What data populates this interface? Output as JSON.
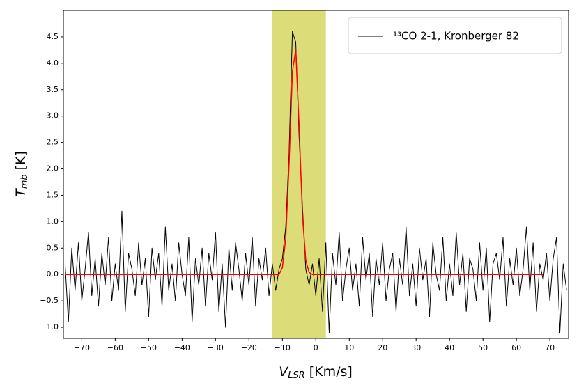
{
  "chart_data": {
    "type": "line",
    "xlabel": {
      "main": "V",
      "sub": "LSR",
      "unit": "[Km/s]"
    },
    "ylabel": {
      "main": "T",
      "sub": "mb",
      "unit": "[K]"
    },
    "xlim": [
      -75.5,
      75.6
    ],
    "ylim": [
      -1.21,
      5.0
    ],
    "xticks": [
      {
        "value": -70,
        "label": "−70"
      },
      {
        "value": -60,
        "label": "−60"
      },
      {
        "value": -50,
        "label": "−50"
      },
      {
        "value": -40,
        "label": "−40"
      },
      {
        "value": -30,
        "label": "−30"
      },
      {
        "value": -20,
        "label": "−20"
      },
      {
        "value": -10,
        "label": "−10"
      },
      0,
      10,
      20,
      30,
      40,
      50,
      60,
      70
    ],
    "yticks": [
      {
        "value": -1,
        "label": "−1.0"
      },
      {
        "value": -0.5,
        "label": "−0.5"
      },
      {
        "value": 0,
        "label": "0.0"
      },
      {
        "value": 0.5,
        "label": "0.5"
      },
      {
        "value": 1,
        "label": "1.0"
      },
      {
        "value": 1.5,
        "label": "1.5"
      },
      {
        "value": 2,
        "label": "2.0"
      },
      {
        "value": 2.5,
        "label": "2.5"
      },
      {
        "value": 3,
        "label": "3.0"
      },
      {
        "value": 3.5,
        "label": "3.5"
      },
      {
        "value": 4,
        "label": "4.0"
      },
      {
        "value": 4.5,
        "label": "4.5"
      }
    ],
    "span": {
      "xmin": -13,
      "xmax": 3,
      "color": "#dcdc78"
    },
    "legend": "upper right",
    "x": [
      -75,
      -74,
      -73,
      -72,
      -71,
      -70,
      -69,
      -68,
      -67,
      -66,
      -65,
      -64,
      -63,
      -62,
      -61,
      -60,
      -59,
      -58,
      -57,
      -56,
      -55,
      -54,
      -53,
      -52,
      -51,
      -50,
      -49,
      -48,
      -47,
      -46,
      -45,
      -44,
      -43,
      -42,
      -41,
      -40,
      -39,
      -38,
      -37,
      -36,
      -35,
      -34,
      -33,
      -32,
      -31,
      -30,
      -29,
      -28,
      -27,
      -26,
      -25,
      -24,
      -23,
      -22,
      -21,
      -20,
      -19,
      -18,
      -17,
      -16,
      -15,
      -14,
      -13,
      -12,
      -11,
      -10,
      -9,
      -8,
      -7,
      -6,
      -5,
      -4,
      -3,
      -2,
      -1,
      0,
      1,
      2,
      3,
      4,
      5,
      6,
      7,
      8,
      9,
      10,
      11,
      12,
      13,
      14,
      15,
      16,
      17,
      18,
      19,
      20,
      21,
      22,
      23,
      24,
      25,
      26,
      27,
      28,
      29,
      30,
      31,
      32,
      33,
      34,
      35,
      36,
      37,
      38,
      39,
      40,
      41,
      42,
      43,
      44,
      45,
      46,
      47,
      48,
      49,
      50,
      51,
      52,
      53,
      54,
      55,
      56,
      57,
      58,
      59,
      60,
      61,
      62,
      63,
      64,
      65,
      66,
      67,
      68,
      69,
      70,
      71,
      72,
      73,
      74,
      75
    ],
    "series": [
      {
        "name": "¹³CO 2-1, Kronberger 82",
        "color": "#000000",
        "values": [
          0.2,
          -0.9,
          0.5,
          -0.3,
          0.6,
          -0.5,
          0.1,
          0.8,
          -0.4,
          0.3,
          -0.6,
          0.4,
          -0.2,
          0.7,
          -0.5,
          0.2,
          -0.3,
          1.2,
          -0.7,
          0.4,
          0.1,
          -0.4,
          0.6,
          -0.2,
          0.3,
          -0.8,
          0.5,
          -0.1,
          0.4,
          -0.6,
          0.9,
          -0.3,
          0.2,
          -0.5,
          0.6,
          0.0,
          -0.4,
          0.7,
          -0.9,
          0.3,
          -0.2,
          0.5,
          -0.6,
          0.4,
          -0.1,
          0.8,
          -0.7,
          0.2,
          -1.0,
          0.5,
          -0.3,
          0.6,
          0.1,
          -0.5,
          0.4,
          -0.2,
          0.7,
          -0.6,
          0.3,
          -0.1,
          0.5,
          -0.4,
          0.2,
          -0.3,
          0.1,
          0.3,
          0.9,
          2.3,
          4.6,
          4.4,
          2.6,
          1.3,
          0.1,
          -0.2,
          0.2,
          -0.4,
          0.3,
          -0.7,
          0.6,
          -1.1,
          0.4,
          -0.2,
          0.8,
          -0.5,
          0.1,
          0.5,
          -0.3,
          0.2,
          -0.6,
          0.7,
          -0.1,
          0.4,
          -0.8,
          0.3,
          -0.2,
          0.6,
          -0.5,
          0.1,
          0.4,
          -0.7,
          0.3,
          -0.2,
          0.9,
          -0.4,
          0.2,
          -0.6,
          0.5,
          -0.1,
          0.3,
          -0.8,
          0.6,
          0.0,
          -0.3,
          0.7,
          -0.5,
          0.2,
          -0.4,
          0.8,
          -0.2,
          0.4,
          -0.7,
          0.3,
          0.1,
          -0.5,
          0.6,
          -0.3,
          0.5,
          -0.9,
          0.2,
          0.4,
          -0.1,
          0.7,
          -0.6,
          0.3,
          -0.2,
          0.5,
          -0.4,
          0.1,
          0.9,
          -0.3,
          0.6,
          -0.7,
          0.2,
          -0.1,
          0.4,
          -0.5,
          0.3,
          0.7,
          -1.1,
          0.2,
          -0.3
        ]
      }
    ],
    "fit": {
      "color": "#ff0000",
      "x": [
        -75,
        -11,
        -10,
        -9,
        -8,
        -7,
        -6,
        -5,
        -4,
        -3,
        -2,
        -1,
        68
      ],
      "values": [
        0,
        0,
        0.13,
        0.68,
        2.08,
        3.84,
        4.25,
        2.83,
        1.13,
        0.27,
        0.04,
        0,
        0
      ]
    }
  }
}
